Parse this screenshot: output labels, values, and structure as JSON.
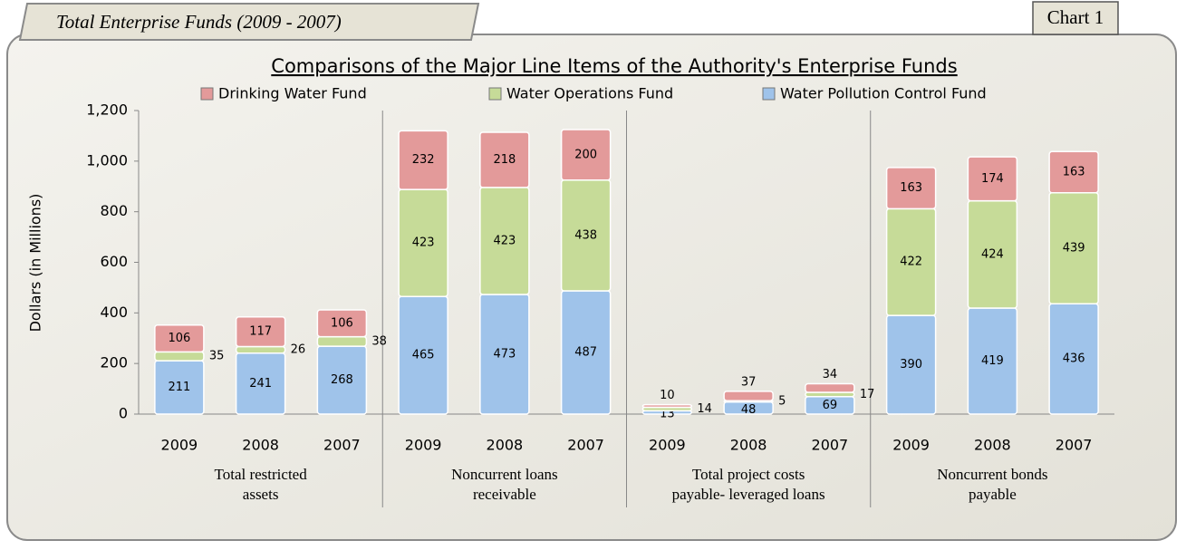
{
  "header": {
    "tab": "Total Enterprise Funds   (2009 - 2007)",
    "chart_label": "Chart 1"
  },
  "chart_data": {
    "type": "stacked_bar",
    "title": "Comparisons of the Major Line Items of the Authority's Enterprise Funds",
    "y_label": "Dollars (in Millions)",
    "categories": [
      "2009",
      "2008",
      "2007",
      "2009",
      "2008",
      "2007",
      "2009",
      "2008",
      "2007",
      "2009",
      "2008",
      "2007"
    ],
    "group_labels": [
      [
        "Total  restricted",
        "assets"
      ],
      [
        "Noncurrent loans",
        "receivable"
      ],
      [
        "Total project costs",
        "payable- leveraged loans"
      ],
      [
        "Noncurrent bonds",
        "payable"
      ]
    ],
    "series": [
      {
        "name": "Drinking Water Fund",
        "color": "#e39a9a",
        "values": [
          106,
          117,
          106,
          232,
          218,
          200,
          10,
          37,
          34,
          163,
          174,
          163
        ]
      },
      {
        "name": "Water Operations Fund",
        "color": "#c6db98",
        "values": [
          35,
          26,
          38,
          423,
          423,
          438,
          14,
          5,
          17,
          422,
          424,
          439
        ]
      },
      {
        "name": "Water Pollution Control Fund",
        "color": "#9fc3ea",
        "values": [
          211,
          241,
          268,
          465,
          473,
          487,
          13,
          48,
          69,
          390,
          419,
          436
        ]
      }
    ],
    "ylim": [
      0,
      1200
    ],
    "yticks": [
      0,
      200,
      400,
      600,
      800,
      {
        "value": 1000,
        "label": "1,000"
      },
      {
        "value": 1200,
        "label": "1,200"
      }
    ],
    "grid": false
  }
}
